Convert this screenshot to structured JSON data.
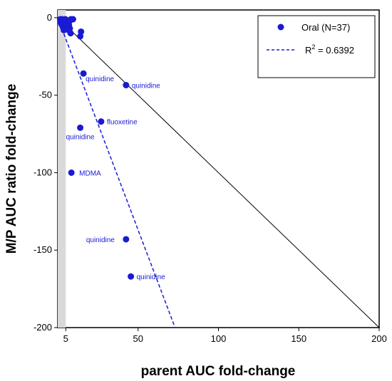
{
  "chart_data": {
    "type": "scatter",
    "xlabel": "parent AUC fold-change",
    "ylabel": "M/P AUC ratio fold-change",
    "xlim": [
      0,
      200
    ],
    "ylim": [
      -200,
      5
    ],
    "xticks": [
      5,
      50,
      100,
      150,
      200
    ],
    "yticks": [
      0,
      -50,
      -100,
      -150,
      -200
    ],
    "grid": false,
    "legend_position": "top-right",
    "colors": {
      "points": "#1a1ad4",
      "regression": "#1a1ad4",
      "identity": "#000000",
      "band": "#d9d9d9"
    },
    "legend": {
      "series_label": "Oral (N=37)",
      "fit_prefix": "R",
      "fit_superscript": "2",
      "fit_value": " = 0.6392"
    },
    "points": [
      {
        "x": 1.5,
        "y": -1
      },
      {
        "x": 2,
        "y": -2
      },
      {
        "x": 2.2,
        "y": -4
      },
      {
        "x": 2.6,
        "y": -3
      },
      {
        "x": 3,
        "y": -5
      },
      {
        "x": 3.3,
        "y": -2
      },
      {
        "x": 3.6,
        "y": -4
      },
      {
        "x": 4,
        "y": -6
      },
      {
        "x": 4.5,
        "y": -3
      },
      {
        "x": 5,
        "y": -5
      },
      {
        "x": 5.5,
        "y": -4
      },
      {
        "x": 6,
        "y": -6
      },
      {
        "x": 6.5,
        "y": -3
      },
      {
        "x": 7,
        "y": -5
      },
      {
        "x": 7.5,
        "y": -7
      },
      {
        "x": 4.2,
        "y": -2.5
      },
      {
        "x": 1.8,
        "y": -3
      },
      {
        "x": 2.8,
        "y": -1
      },
      {
        "x": 5.2,
        "y": -7
      },
      {
        "x": 3.8,
        "y": -8
      },
      {
        "x": 4.8,
        "y": -1
      },
      {
        "x": 6.2,
        "y": -2
      },
      {
        "x": 3.2,
        "y": -6
      },
      {
        "x": 7.2,
        "y": -2.5
      },
      {
        "x": 8.2,
        "y": -1
      },
      {
        "x": 8,
        "y": -10
      },
      {
        "x": 14.5,
        "y": -9
      },
      {
        "x": 14,
        "y": -12
      },
      {
        "x": 16,
        "y": -36
      },
      {
        "x": 42.5,
        "y": -43.5
      },
      {
        "x": 27,
        "y": -67
      },
      {
        "x": 14,
        "y": -71
      },
      {
        "x": 8.5,
        "y": -100
      },
      {
        "x": 42.5,
        "y": -143
      },
      {
        "x": 45.5,
        "y": -167
      },
      {
        "x": 9.5,
        "y": -1
      },
      {
        "x": 6.8,
        "y": -8
      }
    ],
    "annotations": [
      {
        "text": "quinidine",
        "x": 16,
        "y": -36
      },
      {
        "text": "quinidine",
        "x": 42.5,
        "y": -43.5
      },
      {
        "text": "fluoxetine",
        "x": 27,
        "y": -67
      },
      {
        "text": "quinidine",
        "x": 14,
        "y": -71
      },
      {
        "text": "MDMA",
        "x": 8.5,
        "y": -100
      },
      {
        "text": "quinidine",
        "x": 42.5,
        "y": -143
      },
      {
        "text": "quinidine",
        "x": 45.5,
        "y": -167
      }
    ],
    "identity_line": {
      "x": [
        0,
        200
      ],
      "y": [
        0,
        -200
      ]
    },
    "regression_line": {
      "x": [
        0,
        73
      ],
      "y": [
        0,
        -200
      ]
    }
  }
}
